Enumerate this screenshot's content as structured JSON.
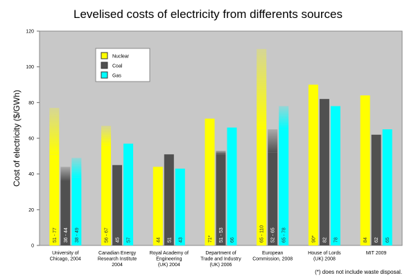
{
  "chart_data": {
    "type": "bar",
    "title": "Levelised costs of electricity from differents sources",
    "y_label": "Cost of electricity ($/GWh)",
    "footnote": "(*) does not include waste disposal.",
    "categories": [
      "University of\nChicago, 2004",
      "Canadian Energy\nResearch Institute\n2004",
      "Royal Academy of\nEngineering\n(UK) 2004",
      "Department of\nTrade and Industry\n(UK) 2006",
      "European\nCommission, 2008",
      "House of Lords\n(UK) 2008",
      "MIT 2009"
    ],
    "series": [
      {
        "name": "Nuclear",
        "color": "#ffff00",
        "values": [
          77,
          67,
          44,
          71,
          110,
          90,
          84
        ],
        "lows": [
          51,
          56,
          null,
          null,
          65,
          null,
          null
        ],
        "value_labels": [
          "51 - 77",
          "56 - 67",
          "44",
          "71*",
          "65 - 110",
          "90*",
          "84"
        ]
      },
      {
        "name": "Coal",
        "color": "#505050",
        "values": [
          44,
          45,
          51,
          53,
          65,
          82,
          62
        ],
        "lows": [
          36,
          null,
          null,
          51,
          52,
          null,
          null
        ],
        "value_labels": [
          "36 - 44",
          "45",
          "51",
          "51 - 53",
          "52 - 65",
          "82",
          "62"
        ]
      },
      {
        "name": "Gas",
        "color": "#00ffff",
        "values": [
          49,
          57,
          43,
          66,
          78,
          78,
          65
        ],
        "lows": [
          38,
          null,
          null,
          null,
          65,
          null,
          null
        ],
        "value_labels": [
          "38 - 49",
          "57",
          "43",
          "66",
          "65 - 78",
          "78",
          "65"
        ]
      }
    ],
    "ylim": [
      0,
      120
    ],
    "yticks": [
      0,
      20,
      40,
      60,
      80,
      100,
      120
    ],
    "grid": false,
    "legend": "upper-left"
  }
}
